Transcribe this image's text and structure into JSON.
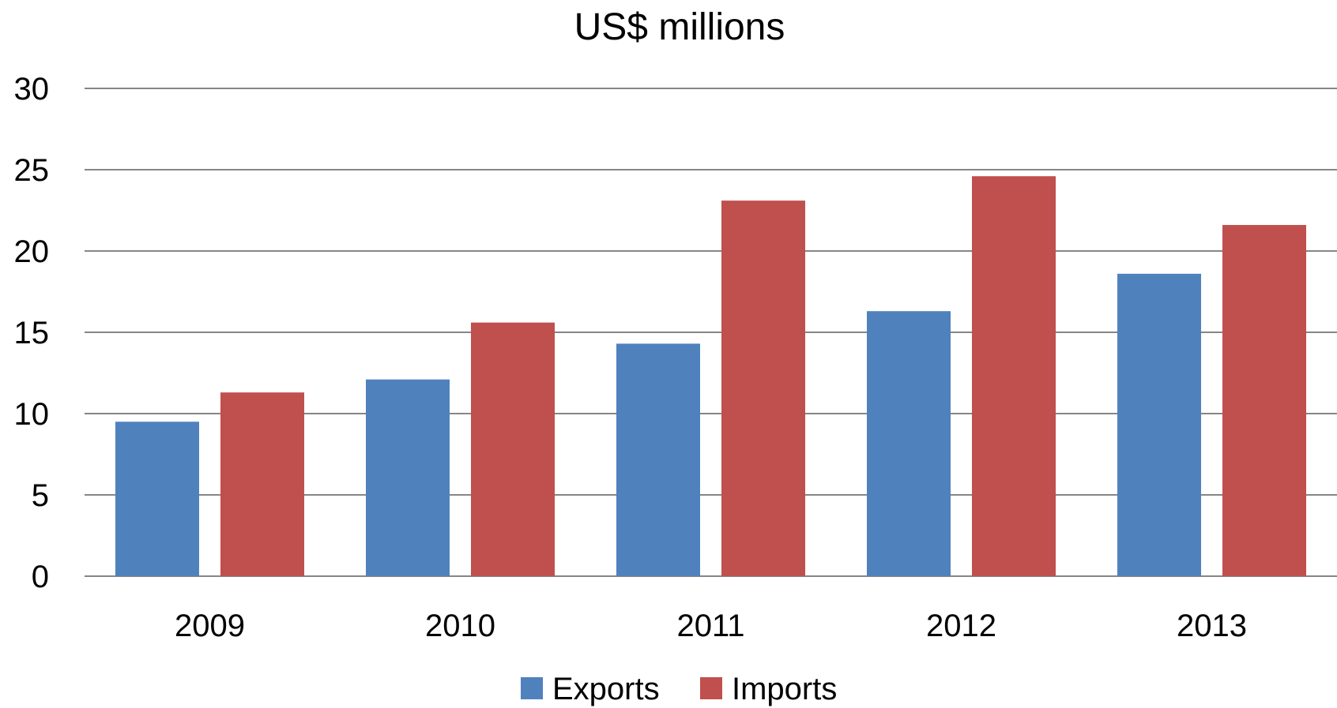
{
  "chart_data": {
    "type": "bar",
    "title": "US$ millions",
    "xlabel": "",
    "ylabel": "",
    "categories": [
      "2009",
      "2010",
      "2011",
      "2012",
      "2013"
    ],
    "series": [
      {
        "name": "Exports",
        "color": "#4F81BD",
        "values": [
          9.5,
          12.1,
          14.3,
          16.3,
          18.6
        ]
      },
      {
        "name": "Imports",
        "color": "#C0504D",
        "values": [
          11.3,
          15.6,
          23.1,
          24.6,
          21.6
        ]
      }
    ],
    "ylim": [
      0,
      30
    ],
    "yticks": [
      "0",
      "5",
      "10",
      "15",
      "20",
      "25",
      "30"
    ],
    "grid": true,
    "legend_position": "bottom"
  }
}
